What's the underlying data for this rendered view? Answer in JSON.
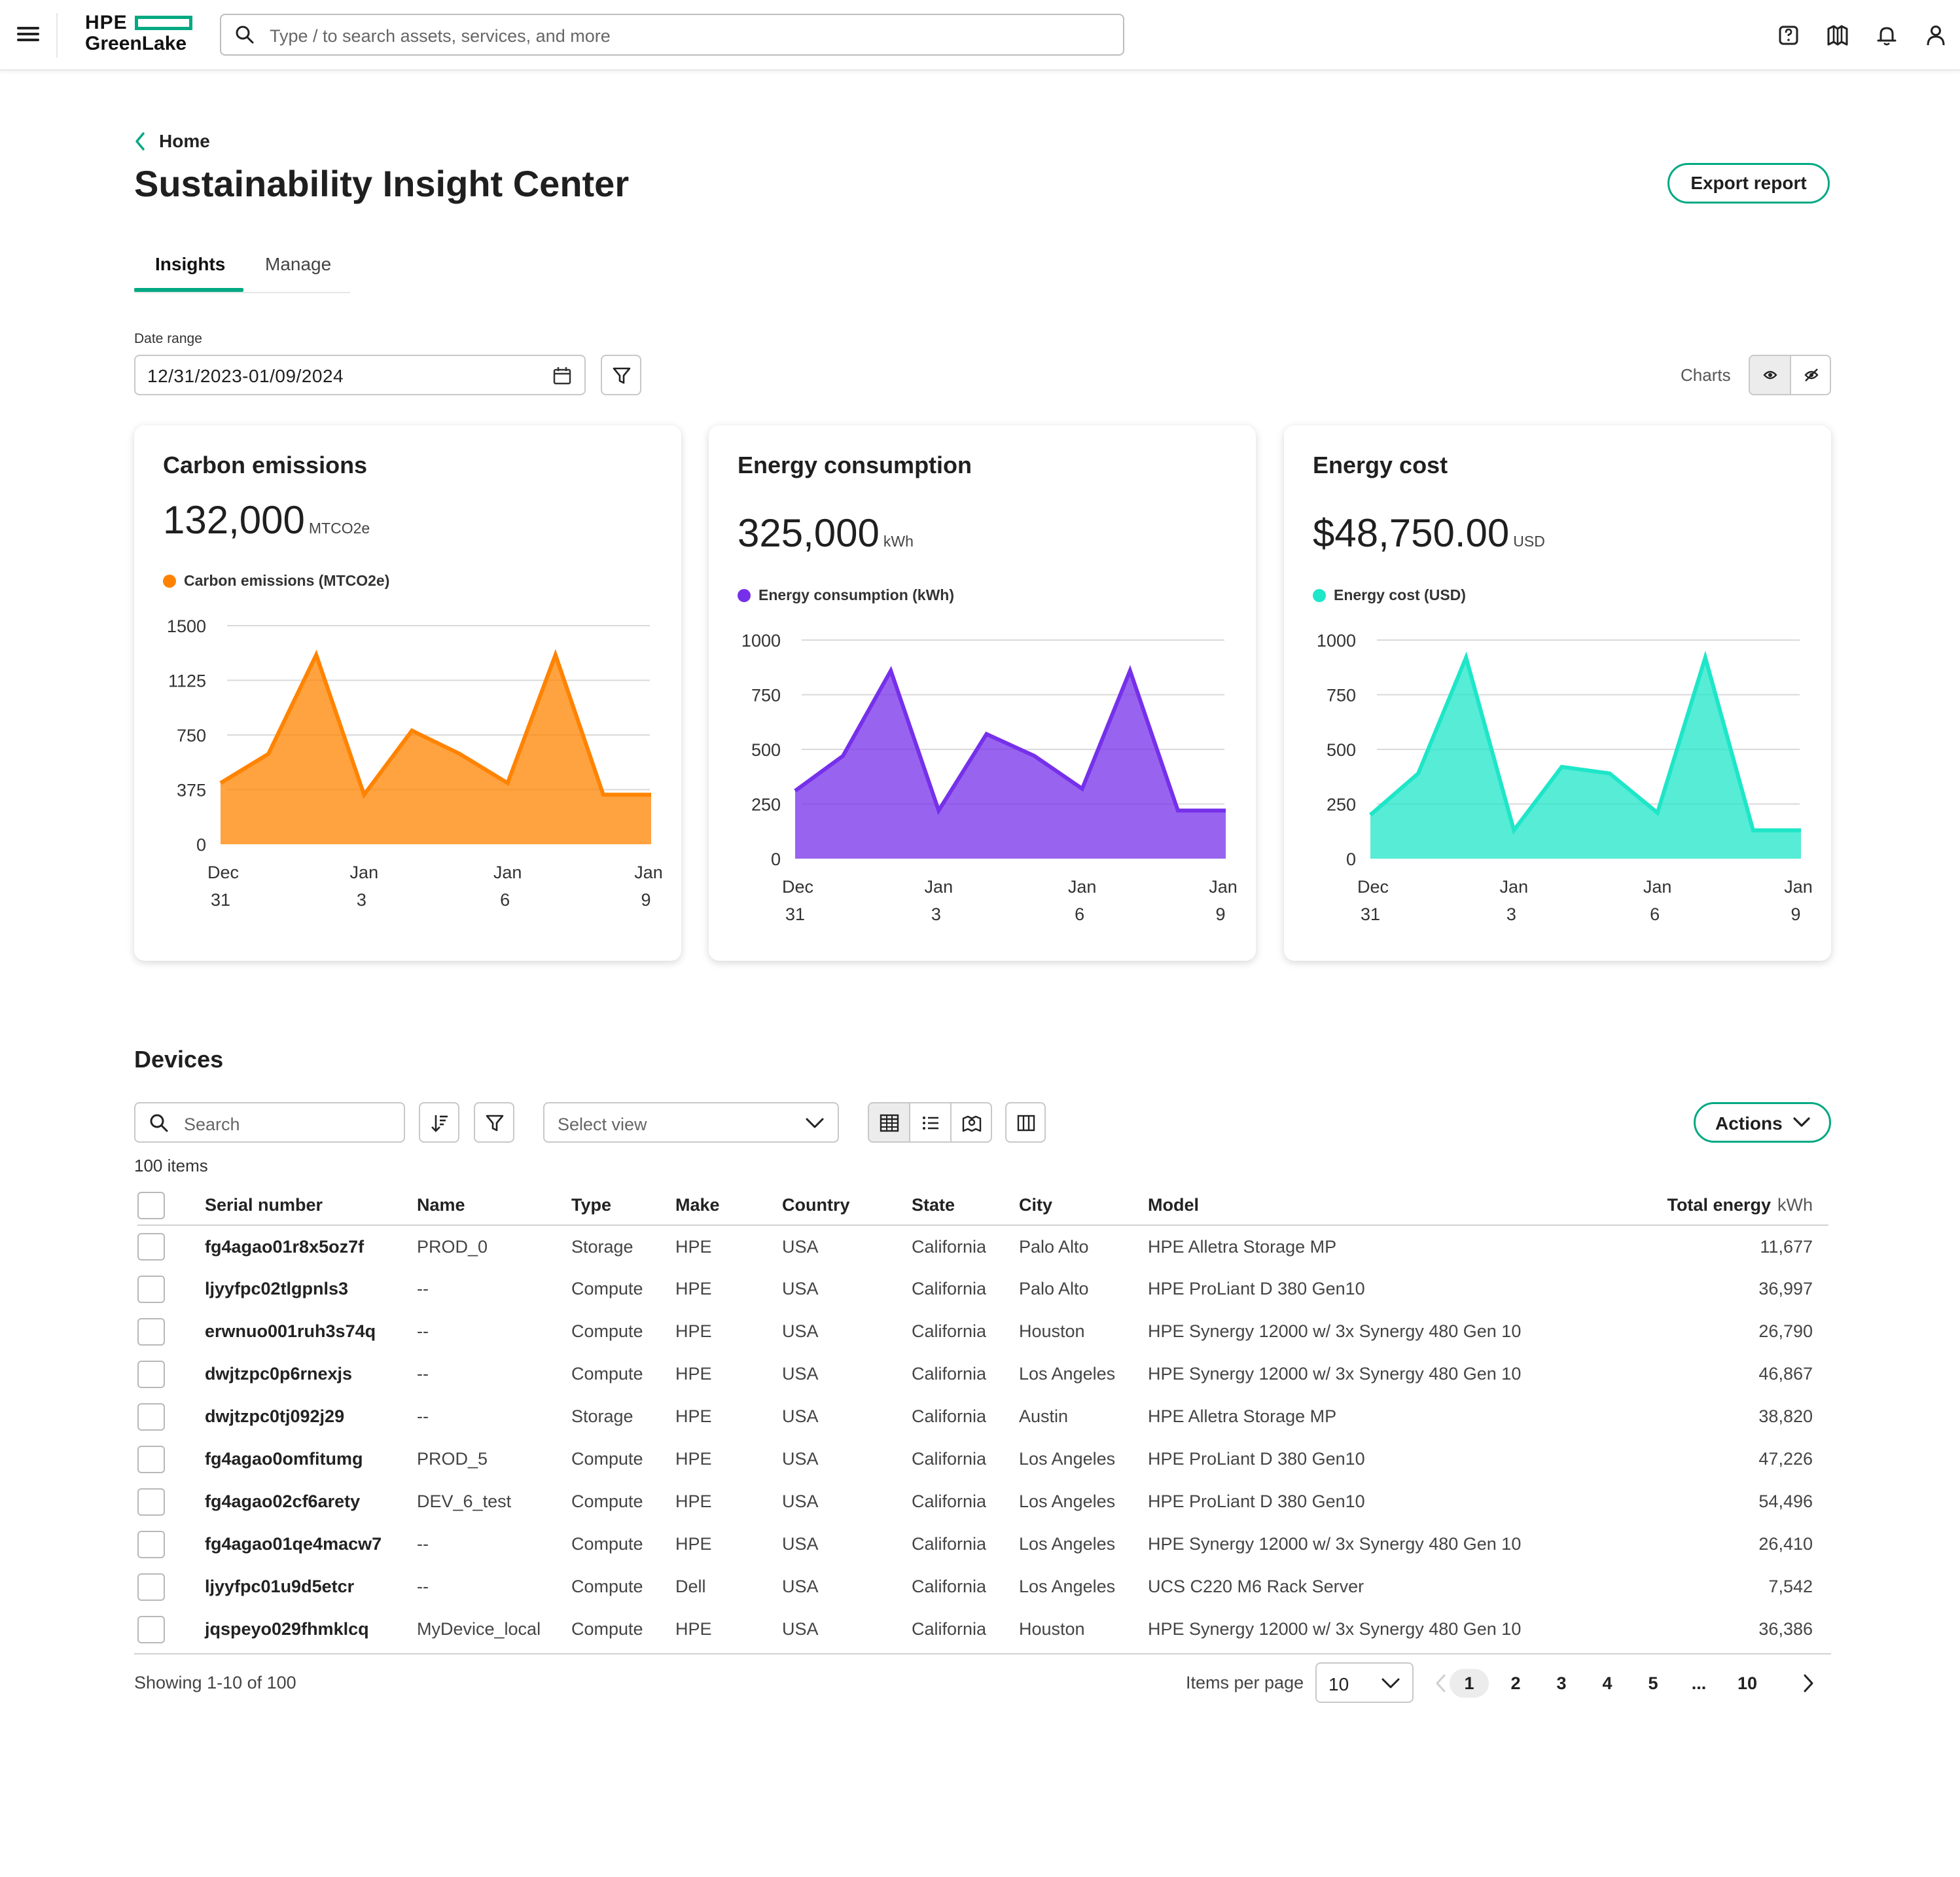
{
  "header": {
    "logo_top": "HPE",
    "logo_bottom": "GreenLake",
    "search_placeholder": "Type / to search assets, services, and more"
  },
  "breadcrumb": {
    "label": "Home"
  },
  "page_title": "Sustainability Insight Center",
  "export_label": "Export report",
  "tabs": [
    {
      "label": "Insights",
      "active": true
    },
    {
      "label": "Manage",
      "active": false
    }
  ],
  "date_range": {
    "label": "Date range",
    "value": "12/31/2023-01/09/2024"
  },
  "charts_toggle": {
    "label": "Charts"
  },
  "cards": [
    {
      "title": "Carbon emissions",
      "value": "132,000",
      "unit": "MTCO2e",
      "legend": "Carbon emissions (MTCO2e)",
      "color": "#ff8300",
      "chart_data": {
        "type": "area",
        "x": [
          "Dec 31",
          "Jan 1",
          "Jan 2",
          "Jan 3",
          "Jan 4",
          "Jan 5",
          "Jan 6",
          "Jan 7",
          "Jan 8",
          "Jan 9"
        ],
        "values": [
          420,
          620,
          1300,
          340,
          780,
          620,
          420,
          1300,
          340,
          340
        ],
        "yticks": [
          0,
          375,
          750,
          1125,
          1500
        ],
        "ylim": [
          0,
          1500
        ],
        "xtick_labels": [
          [
            "Dec",
            "31"
          ],
          [
            "Jan",
            "3"
          ],
          [
            "Jan",
            "6"
          ],
          [
            "Jan",
            "9"
          ]
        ],
        "xtick_index": [
          0,
          3,
          6,
          9
        ]
      }
    },
    {
      "title": "Energy consumption",
      "value": "325,000",
      "unit": "kWh",
      "legend": "Energy consumption (kWh)",
      "color": "#7630ea",
      "chart_data": {
        "type": "area",
        "x": [
          "Dec 31",
          "Jan 1",
          "Jan 2",
          "Jan 3",
          "Jan 4",
          "Jan 5",
          "Jan 6",
          "Jan 7",
          "Jan 8",
          "Jan 9"
        ],
        "values": [
          310,
          470,
          860,
          220,
          570,
          470,
          320,
          860,
          220,
          220
        ],
        "yticks": [
          0,
          250,
          500,
          750,
          1000
        ],
        "ylim": [
          0,
          1000
        ],
        "xtick_labels": [
          [
            "Dec",
            "31"
          ],
          [
            "Jan",
            "3"
          ],
          [
            "Jan",
            "6"
          ],
          [
            "Jan",
            "9"
          ]
        ],
        "xtick_index": [
          0,
          3,
          6,
          9
        ]
      }
    },
    {
      "title": "Energy cost",
      "value": "$48,750.00",
      "unit": "USD",
      "legend": "Energy cost (USD)",
      "color": "#1ee6c8",
      "chart_data": {
        "type": "area",
        "x": [
          "Dec 31",
          "Jan 1",
          "Jan 2",
          "Jan 3",
          "Jan 4",
          "Jan 5",
          "Jan 6",
          "Jan 7",
          "Jan 8",
          "Jan 9"
        ],
        "values": [
          200,
          390,
          920,
          130,
          420,
          390,
          210,
          920,
          130,
          130
        ],
        "yticks": [
          0,
          250,
          500,
          750,
          1000
        ],
        "ylim": [
          0,
          1000
        ],
        "xtick_labels": [
          [
            "Dec",
            "31"
          ],
          [
            "Jan",
            "3"
          ],
          [
            "Jan",
            "6"
          ],
          [
            "Jan",
            "9"
          ]
        ],
        "xtick_index": [
          0,
          3,
          6,
          9
        ]
      }
    }
  ],
  "devices": {
    "title": "Devices",
    "search_placeholder": "Search",
    "select_view": "Select view",
    "actions_label": "Actions",
    "items_count": "100 items",
    "columns": [
      "Serial number",
      "Name",
      "Type",
      "Make",
      "Country",
      "State",
      "City",
      "Model",
      "Total energy"
    ],
    "energy_unit": "kWh",
    "rows": [
      [
        "fg4agao01r8x5oz7f",
        "PROD_0",
        "Storage",
        "HPE",
        "USA",
        "California",
        "Palo Alto",
        "HPE Alletra Storage MP",
        "11,677"
      ],
      [
        "ljyyfpc02tlgpnls3",
        "--",
        "Compute",
        "HPE",
        "USA",
        "California",
        "Palo Alto",
        "HPE ProLiant D 380 Gen10",
        "36,997"
      ],
      [
        "erwnuo001ruh3s74q",
        "--",
        "Compute",
        "HPE",
        "USA",
        "California",
        "Houston",
        "HPE Synergy 12000 w/ 3x Synergy 480 Gen 10",
        "26,790"
      ],
      [
        "dwjtzpc0p6rnexjs",
        "--",
        "Compute",
        "HPE",
        "USA",
        "California",
        "Los Angeles",
        "HPE Synergy 12000 w/ 3x Synergy 480 Gen 10",
        "46,867"
      ],
      [
        "dwjtzpc0tj092j29",
        "--",
        "Storage",
        "HPE",
        "USA",
        "California",
        "Austin",
        "HPE Alletra Storage MP",
        "38,820"
      ],
      [
        "fg4agao0omfitumg",
        "PROD_5",
        "Compute",
        "HPE",
        "USA",
        "California",
        "Los Angeles",
        "HPE ProLiant D 380 Gen10",
        "47,226"
      ],
      [
        "fg4agao02cf6arety",
        "DEV_6_test",
        "Compute",
        "HPE",
        "USA",
        "California",
        "Los Angeles",
        "HPE ProLiant D 380 Gen10",
        "54,496"
      ],
      [
        "fg4agao01qe4macw7",
        "--",
        "Compute",
        "HPE",
        "USA",
        "California",
        "Los Angeles",
        "HPE Synergy 12000 w/ 3x Synergy 480 Gen 10",
        "26,410"
      ],
      [
        "ljyyfpc01u9d5etcr",
        "--",
        "Compute",
        "Dell",
        "USA",
        "California",
        "Los Angeles",
        "UCS C220 M6 Rack Server",
        "7,542"
      ],
      [
        "jqspeyo029fhmklcq",
        "MyDevice_local",
        "Compute",
        "HPE",
        "USA",
        "California",
        "Houston",
        "HPE Synergy 12000 w/ 3x Synergy 480 Gen 10",
        "36,386"
      ]
    ]
  },
  "pagination": {
    "showing": "Showing 1-10 of 100",
    "items_per_page_label": "Items per page",
    "items_per_page": "10",
    "pages": [
      "1",
      "2",
      "3",
      "4",
      "5",
      "...",
      "10"
    ],
    "current_page": "1"
  },
  "colors": {
    "accent": "#01a982"
  }
}
